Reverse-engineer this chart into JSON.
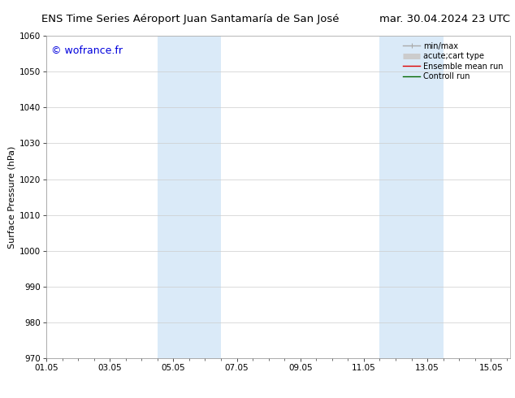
{
  "title_left": "ENS Time Series Aéroport Juan Santamaría de San José",
  "title_right": "mar. 30.04.2024 23 UTC",
  "ylabel": "Surface Pressure (hPa)",
  "watermark": "© wofrance.fr",
  "watermark_color": "#0000dd",
  "ylim": [
    970,
    1060
  ],
  "yticks": [
    970,
    980,
    990,
    1000,
    1010,
    1020,
    1030,
    1040,
    1050,
    1060
  ],
  "xlim_start": 0.0,
  "xlim_end": 14.6,
  "xtick_positions": [
    0.0,
    2.0,
    4.0,
    6.0,
    8.0,
    10.0,
    12.0,
    14.0
  ],
  "xtick_labels": [
    "01.05",
    "03.05",
    "05.05",
    "07.05",
    "09.05",
    "11.05",
    "13.05",
    "15.05"
  ],
  "shaded_bands": [
    {
      "x_start": 3.5,
      "x_end": 5.5
    },
    {
      "x_start": 10.5,
      "x_end": 12.5
    }
  ],
  "shaded_color": "#daeaf8",
  "grid_color": "#cccccc",
  "background_color": "#ffffff",
  "legend_items": [
    {
      "label": "min/max",
      "color": "#aaaaaa",
      "lw": 1.0,
      "style": "line_with_bars"
    },
    {
      "label": "acute;cart type",
      "color": "#cccccc",
      "lw": 5,
      "style": "thick"
    },
    {
      "label": "Ensemble mean run",
      "color": "#dd0000",
      "lw": 1.0,
      "style": "line"
    },
    {
      "label": "Controll run",
      "color": "#006600",
      "lw": 1.0,
      "style": "line"
    }
  ],
  "title_fontsize": 9.5,
  "axis_label_fontsize": 8,
  "tick_fontsize": 7.5,
  "watermark_fontsize": 9,
  "legend_fontsize": 7
}
